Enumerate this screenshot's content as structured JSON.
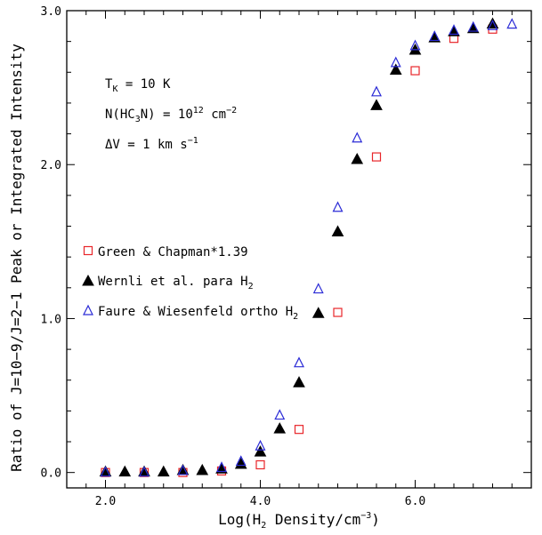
{
  "chart_data": {
    "type": "scatter",
    "xlabel": "Log(H₂ Density/cm⁻³)",
    "ylabel": "Ratio of J=10−9/J=2−1 Peak or Integrated Intensity",
    "xlim": [
      1.5,
      7.5
    ],
    "ylim": [
      -0.1,
      3.0
    ],
    "x_ticks": [
      2.0,
      4.0,
      6.0
    ],
    "x_tick_labels": [
      "2.0",
      "4.0",
      "6.0"
    ],
    "y_ticks": [
      0.0,
      1.0,
      2.0,
      3.0
    ],
    "y_tick_labels": [
      "0.0",
      "1.0",
      "2.0",
      "3.0"
    ],
    "grid": false,
    "legend_position": "middle-left",
    "annotations": [
      "Tₖ = 10 K",
      "N(HC₃N) = 10¹² cm⁻²",
      "ΔV = 1 km s⁻¹"
    ],
    "series": [
      {
        "name": "Green & Chapman*1.39",
        "marker": "open-square",
        "color": "#e8262a",
        "x": [
          2.0,
          2.5,
          3.0,
          3.5,
          4.0,
          4.5,
          5.0,
          5.5,
          6.0,
          6.5,
          7.0
        ],
        "y": [
          0.0,
          0.0,
          0.0,
          0.01,
          0.05,
          0.28,
          1.04,
          2.05,
          2.61,
          2.82,
          2.88
        ]
      },
      {
        "name": "Wernli et al. para H₂",
        "marker": "filled-triangle",
        "color": "#000000",
        "x": [
          2.0,
          2.25,
          2.5,
          2.75,
          3.0,
          3.25,
          3.5,
          3.75,
          4.0,
          4.25,
          4.5,
          4.75,
          5.0,
          5.25,
          5.5,
          5.75,
          6.0,
          6.25,
          6.5,
          6.75,
          7.0
        ],
        "y": [
          0.0,
          0.0,
          0.0,
          0.0,
          0.01,
          0.01,
          0.02,
          0.05,
          0.13,
          0.28,
          0.58,
          1.03,
          1.56,
          2.03,
          2.38,
          2.61,
          2.74,
          2.82,
          2.86,
          2.88,
          2.91
        ]
      },
      {
        "name": "Faure & Wiesenfeld ortho H₂",
        "marker": "open-triangle",
        "color": "#2b2bd6",
        "x": [
          2.0,
          2.5,
          3.0,
          3.5,
          3.75,
          4.0,
          4.25,
          4.5,
          4.75,
          5.0,
          5.25,
          5.5,
          5.75,
          6.0,
          6.25,
          6.5,
          6.75,
          7.0,
          7.25
        ],
        "y": [
          0.0,
          0.0,
          0.01,
          0.03,
          0.07,
          0.17,
          0.37,
          0.71,
          1.19,
          1.72,
          2.17,
          2.47,
          2.66,
          2.77,
          2.83,
          2.87,
          2.89,
          2.9,
          2.91
        ]
      }
    ]
  }
}
